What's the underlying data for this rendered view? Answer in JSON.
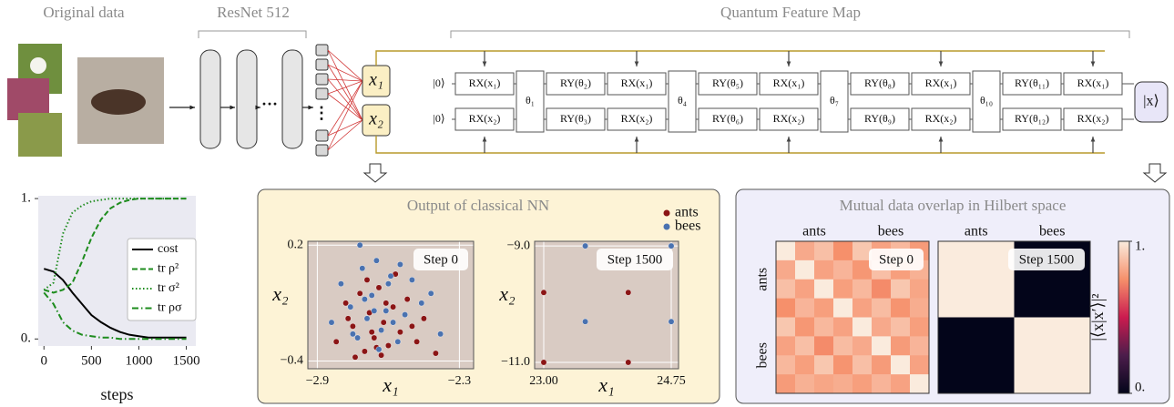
{
  "header": {
    "original_data": "Original data",
    "resnet": "ResNet 512",
    "qfm": "Quantum Feature Map"
  },
  "network": {
    "inputs": [
      "x₁",
      "x₂"
    ],
    "ellipsis_h": "···",
    "ellipsis_v": "⋮"
  },
  "circuit": {
    "init": [
      "|0⟩",
      "|0⟩"
    ],
    "output": "|x⟩",
    "columns": [
      {
        "gates": [
          "RX(x₁)",
          "RX(x₂)"
        ]
      },
      {
        "block": "θ₁"
      },
      {
        "gates": [
          "RY(θ₂)",
          "RY(θ₃)"
        ]
      },
      {
        "gates": [
          "RX(x₁)",
          "RX(x₂)"
        ]
      },
      {
        "block": "θ₄"
      },
      {
        "gates": [
          "RY(θ₅)",
          "RY(θ₆)"
        ]
      },
      {
        "gates": [
          "RX(x₁)",
          "RX(x₂)"
        ]
      },
      {
        "block": "θ₇"
      },
      {
        "gates": [
          "RY(θ₈)",
          "RY(θ₉)"
        ]
      },
      {
        "gates": [
          "RX(x₁)",
          "RX(x₂)"
        ]
      },
      {
        "block": "θ₁₀"
      },
      {
        "gates": [
          "RY(θ₁₁)",
          "RY(θ₁₂)"
        ]
      },
      {
        "gates": [
          "RX(x₁)",
          "RX(x₂)"
        ]
      }
    ]
  },
  "panels": {
    "classical": "Output of classical NN",
    "hilbert": "Mutual data overlap in Hilbert space"
  },
  "chart_data": [
    {
      "type": "line",
      "x_label": "steps",
      "x": [
        0,
        100,
        200,
        300,
        400,
        500,
        600,
        700,
        800,
        900,
        1000,
        1100,
        1200,
        1300,
        1400,
        1500
      ],
      "series": [
        {
          "name": "cost",
          "color": "#000000",
          "style": "solid",
          "values": [
            0.5,
            0.48,
            0.42,
            0.33,
            0.25,
            0.17,
            0.12,
            0.08,
            0.05,
            0.03,
            0.02,
            0.01,
            0.01,
            0.01,
            0.01,
            0.01
          ]
        },
        {
          "name": "tr ρ²",
          "color": "#1e8c1e",
          "style": "dashed",
          "values": [
            0.35,
            0.33,
            0.35,
            0.4,
            0.55,
            0.72,
            0.85,
            0.93,
            0.97,
            0.99,
            1,
            1,
            1,
            1,
            1,
            1
          ]
        },
        {
          "name": "tr σ²",
          "color": "#1e8c1e",
          "style": "dotted",
          "values": [
            0.35,
            0.4,
            0.75,
            0.9,
            0.95,
            0.98,
            0.99,
            1,
            1,
            1,
            1,
            1,
            1,
            1,
            1,
            1
          ]
        },
        {
          "name": "tr ρσ",
          "color": "#1e8c1e",
          "style": "dashdot",
          "values": [
            0.33,
            0.25,
            0.12,
            0.06,
            0.03,
            0.02,
            0.01,
            0.01,
            0,
            0,
            0,
            0,
            0,
            0,
            0,
            0
          ]
        }
      ],
      "xlim": [
        -60,
        1600
      ],
      "ylim": [
        -0.05,
        1.02
      ],
      "xticks": [
        0,
        500,
        1000,
        1500
      ],
      "yticks": [
        {
          "value": 0,
          "label": "0."
        },
        {
          "value": 1,
          "label": "1."
        }
      ],
      "legend": "center right"
    },
    {
      "type": "scatter",
      "x_label": "x₁",
      "y_label": "x₂",
      "annotation": "Step 0",
      "grid": true,
      "legend": "upper right",
      "series": [
        {
          "name": "ants",
          "color": "#8b1515",
          "x": [
            -2.82,
            -2.78,
            -2.75,
            -2.72,
            -2.7,
            -2.68,
            -2.66,
            -2.64,
            -2.62,
            -2.6,
            -2.58,
            -2.55,
            -2.52,
            -2.48,
            -2.45,
            -2.4,
            -2.74,
            -2.69,
            -2.65,
            -2.61,
            -2.77,
            -2.57,
            -2.5,
            -2.67,
            -2.63
          ],
          "values": [
            -0.3,
            -0.1,
            -0.22,
            -0.05,
            -0.35,
            -0.15,
            -0.28,
            -0.02,
            -0.2,
            -0.32,
            -0.12,
            -0.25,
            -0.08,
            -0.3,
            -0.18,
            -0.36,
            -0.38,
            0.02,
            -0.33,
            -0.1,
            -0.18,
            0.05,
            -0.22,
            -0.25,
            -0.37
          ]
        },
        {
          "name": "bees",
          "color": "#4a72b0",
          "x": [
            -2.84,
            -2.8,
            -2.76,
            -2.73,
            -2.71,
            -2.69,
            -2.67,
            -2.65,
            -2.63,
            -2.61,
            -2.59,
            -2.56,
            -2.53,
            -2.5,
            -2.46,
            -2.42,
            -2.38,
            -2.7,
            -2.64,
            -2.6,
            -2.58,
            -2.72,
            -2.66,
            -2.55,
            -2.75
          ],
          "values": [
            -0.2,
            0,
            -0.12,
            -0.28,
            0.08,
            -0.18,
            -0.06,
            0.12,
            -0.24,
            -0.14,
            0.04,
            -0.3,
            -0.16,
            0.02,
            -0.1,
            -0.05,
            -0.26,
            -0.08,
            -0.34,
            0,
            -0.2,
            0.2,
            -0.14,
            0.1,
            -0.26
          ]
        }
      ],
      "xlim": [
        -2.94,
        -2.24
      ],
      "ylim": [
        -0.44,
        0.22
      ],
      "xticks": [
        {
          "value": -2.9,
          "label": "−2.9"
        },
        {
          "value": -2.3,
          "label": "−2.3"
        }
      ],
      "yticks": [
        {
          "value": -0.4,
          "label": "−0.4"
        },
        0.2
      ]
    },
    {
      "type": "scatter",
      "x_label": "x₁",
      "y_label": "x₂",
      "annotation": "Step 1500",
      "grid": true,
      "series": [
        {
          "color": "#8b1515",
          "x": [
            23.0,
            24.16,
            23.0,
            24.16
          ],
          "values": [
            -9.8,
            -9.8,
            -11.0,
            -11.0
          ]
        },
        {
          "color": "#4a72b0",
          "x": [
            23.57,
            24.75,
            23.57,
            24.75
          ],
          "values": [
            -9.0,
            -9.0,
            -10.3,
            -10.3
          ]
        }
      ],
      "xlim": [
        22.875,
        24.85
      ],
      "ylim": [
        -11.11,
        -8.92
      ],
      "xticks": [
        {
          "value": 23,
          "label": "23.00"
        },
        24.75
      ],
      "yticks": [
        {
          "value": -11,
          "label": "−11.0"
        },
        {
          "value": -9,
          "label": "−9.0"
        }
      ]
    },
    {
      "type": "heatmap",
      "annotation": "Step 0",
      "x_categories": [
        "ants",
        "bees"
      ],
      "y_categories": [
        "ants",
        "bees"
      ],
      "values": [
        [
          1,
          0.82,
          0.88,
          0.75,
          0.9,
          0.8,
          0.86,
          0.78
        ],
        [
          0.82,
          1,
          0.8,
          0.85,
          0.77,
          0.88,
          0.79,
          0.84
        ],
        [
          0.88,
          0.8,
          1,
          0.79,
          0.86,
          0.74,
          0.9,
          0.81
        ],
        [
          0.75,
          0.85,
          0.79,
          1,
          0.8,
          0.87,
          0.76,
          0.83
        ],
        [
          0.9,
          0.77,
          0.86,
          0.8,
          1,
          0.82,
          0.88,
          0.79
        ],
        [
          0.8,
          0.88,
          0.74,
          0.87,
          0.82,
          1,
          0.78,
          0.85
        ],
        [
          0.86,
          0.79,
          0.9,
          0.76,
          0.88,
          0.78,
          1,
          0.8
        ],
        [
          0.78,
          0.84,
          0.81,
          0.83,
          0.79,
          0.85,
          0.8,
          1
        ]
      ]
    },
    {
      "type": "heatmap",
      "annotation": "Step 1500",
      "x_categories": [
        "ants",
        "bees"
      ],
      "values": [
        [
          1,
          0
        ],
        [
          0,
          1
        ]
      ],
      "colorbar": {
        "label": "|⟨x|x′⟩|²",
        "lim": [
          0,
          1
        ],
        "ticks": [
          {
            "value": 1,
            "label": "1."
          },
          {
            "value": 0,
            "label": "0."
          }
        ]
      }
    }
  ]
}
